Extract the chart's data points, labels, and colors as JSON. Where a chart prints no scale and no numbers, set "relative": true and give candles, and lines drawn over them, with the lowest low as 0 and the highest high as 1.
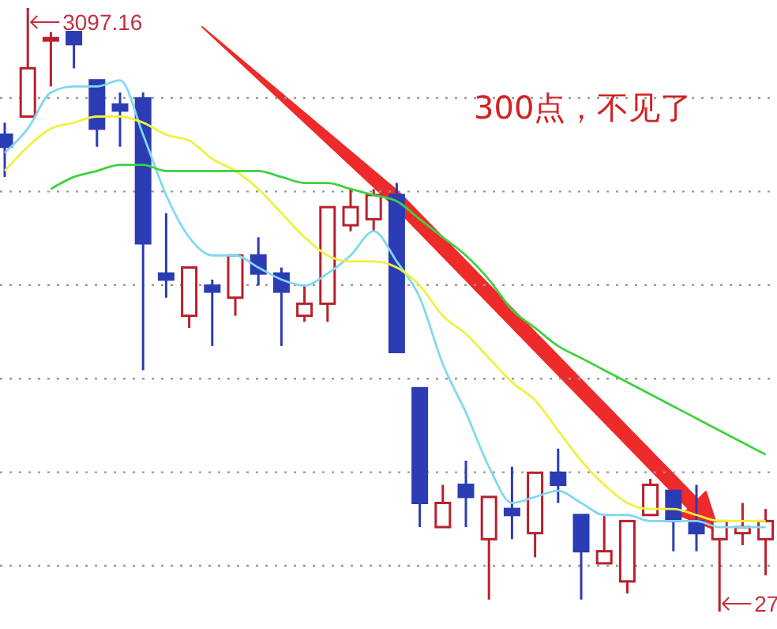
{
  "chart_data": {
    "type": "candlestick",
    "relative": true,
    "grid": true,
    "categories": [
      null,
      null,
      null,
      null,
      null,
      null,
      null,
      null,
      null,
      null,
      null,
      null,
      null,
      null,
      null,
      null,
      null,
      null,
      null,
      null,
      null,
      null,
      null,
      null,
      null,
      null,
      null,
      null,
      null,
      null,
      null,
      null,
      null,
      null
    ],
    "ohlc": [
      [
        0.79,
        0.81,
        0.72,
        0.77
      ],
      [
        0.82,
        1.0,
        0.82,
        0.9
      ],
      [
        0.95,
        0.96,
        0.87,
        0.95
      ],
      [
        0.96,
        0.96,
        0.9,
        0.94
      ],
      [
        0.88,
        0.88,
        0.77,
        0.8
      ],
      [
        0.84,
        0.86,
        0.77,
        0.83
      ],
      [
        0.85,
        0.86,
        0.4,
        0.61
      ],
      [
        0.56,
        0.66,
        0.52,
        0.55
      ],
      [
        0.49,
        0.57,
        0.47,
        0.57
      ],
      [
        0.54,
        0.55,
        0.44,
        0.53
      ],
      [
        0.52,
        0.59,
        0.49,
        0.59
      ],
      [
        0.59,
        0.62,
        0.54,
        0.56
      ],
      [
        0.56,
        0.57,
        0.44,
        0.53
      ],
      [
        0.49,
        0.54,
        0.48,
        0.51
      ],
      [
        0.51,
        0.67,
        0.48,
        0.67
      ],
      [
        0.64,
        0.7,
        0.63,
        0.67
      ],
      [
        0.65,
        0.7,
        0.63,
        0.69
      ],
      [
        0.69,
        0.71,
        0.43,
        0.43
      ],
      [
        0.37,
        0.37,
        0.14,
        0.18
      ],
      [
        0.14,
        0.21,
        0.14,
        0.18
      ],
      [
        0.21,
        0.25,
        0.14,
        0.19
      ],
      [
        0.12,
        0.19,
        0.02,
        0.19
      ],
      [
        0.17,
        0.24,
        0.12,
        0.16
      ],
      [
        0.13,
        0.23,
        0.09,
        0.23
      ],
      [
        0.23,
        0.27,
        0.18,
        0.21
      ],
      [
        0.16,
        0.16,
        0.02,
        0.1
      ],
      [
        0.08,
        0.16,
        0.08,
        0.1
      ],
      [
        0.05,
        0.15,
        0.03,
        0.15
      ],
      [
        0.16,
        0.22,
        0.16,
        0.21
      ],
      [
        0.2,
        0.2,
        0.1,
        0.15
      ],
      [
        0.15,
        0.21,
        0.1,
        0.13
      ],
      [
        0.12,
        0.15,
        0,
        0.15
      ],
      [
        0.13,
        0.18,
        0.11,
        0.14
      ],
      [
        0.12,
        0.17,
        0.06,
        0.15
      ]
    ],
    "series": [
      {
        "type": "line",
        "color": "#80d8f0",
        "values": [
          0.76,
          0.8,
          0.86,
          0.87,
          0.87,
          0.88,
          0.79,
          0.69,
          0.62,
          0.59,
          0.59,
          0.57,
          0.55,
          0.54,
          0.56,
          0.59,
          0.63,
          0.58,
          0.52,
          0.41,
          0.33,
          0.24,
          0.18,
          0.19,
          0.2,
          0.18,
          0.16,
          0.16,
          0.15,
          0.15,
          0.15,
          0.14,
          0.14,
          0.14
        ]
      },
      {
        "type": "line",
        "color": "#f0f040",
        "values": [
          0.73,
          0.77,
          0.8,
          0.81,
          0.82,
          0.82,
          0.81,
          0.79,
          0.78,
          0.75,
          0.73,
          0.7,
          0.66,
          0.62,
          0.59,
          0.58,
          0.58,
          0.57,
          0.54,
          0.49,
          0.46,
          0.42,
          0.38,
          0.35,
          0.3,
          0.25,
          0.21,
          0.18,
          0.17,
          0.17,
          0.16,
          0.15,
          0.15,
          0.15
        ]
      },
      {
        "type": "line",
        "color": "#40d040",
        "values": [
          null,
          null,
          0.7,
          0.72,
          0.73,
          0.74,
          0.74,
          0.73,
          0.73,
          0.73,
          0.73,
          0.73,
          0.72,
          0.71,
          0.71,
          0.7,
          0.69,
          0.68,
          0.65,
          0.62,
          0.59,
          0.55,
          0.5,
          0.47,
          0.44,
          0.42,
          0.4,
          0.38,
          0.36,
          0.34,
          0.32,
          0.3,
          0.28,
          0.26
        ]
      }
    ],
    "annotations": [
      "3097.16",
      "27",
      "300点，不见了"
    ]
  }
}
